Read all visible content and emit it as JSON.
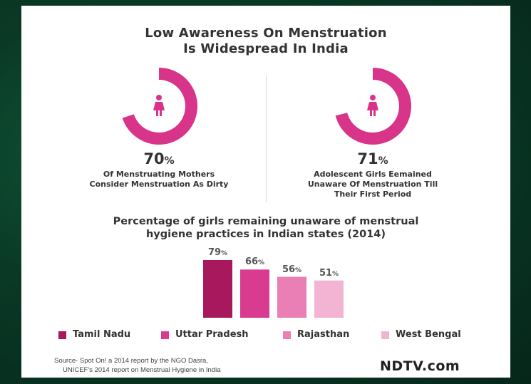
{
  "header": {
    "title_line1": "Low Awareness On Menstruation",
    "title_line2": "Is Widespread In India"
  },
  "stats": [
    {
      "value": "70",
      "unit": "%",
      "desc_line1": "Of Menstruating Mothers",
      "desc_line2": "Consider Menstruation As Dirty",
      "desc_line3": "",
      "icon": "woman-icon",
      "fraction": 0.7
    },
    {
      "value": "71",
      "unit": "%",
      "desc_line1": "Adolescent Girls Eemained",
      "desc_line2": "Unaware Of Menstruation Till",
      "desc_line3": "Their First Period",
      "icon": "woman-icon",
      "fraction": 0.71
    }
  ],
  "chart_data": {
    "type": "bar",
    "title_line1": "Percentage of girls remaining unaware of menstrual",
    "title_line2": "hygiene practices in Indian states (2014)",
    "categories": [
      "Tamil Nadu",
      "Uttar Pradesh",
      "Rajasthan",
      "West Bengal"
    ],
    "values": [
      79,
      66,
      56,
      51
    ],
    "value_suffix": "%",
    "colors": [
      "#a8185c",
      "#d93c8e",
      "#ea7fb6",
      "#f3b3d3"
    ],
    "ylim": [
      0,
      100
    ],
    "grid": false,
    "legend": "bottom"
  },
  "footer": {
    "source_line1": "Source- Spot On! a 2014 report by the NGO Dasra,",
    "source_line2": "UNICEF's 2014 report on Menstrual Hygiene in India",
    "logo": "NDTV.com"
  },
  "colors": {
    "donut": "#d8348a",
    "donut_bg": "#ffffff",
    "icon": "#d8348a",
    "text": "#333333"
  }
}
